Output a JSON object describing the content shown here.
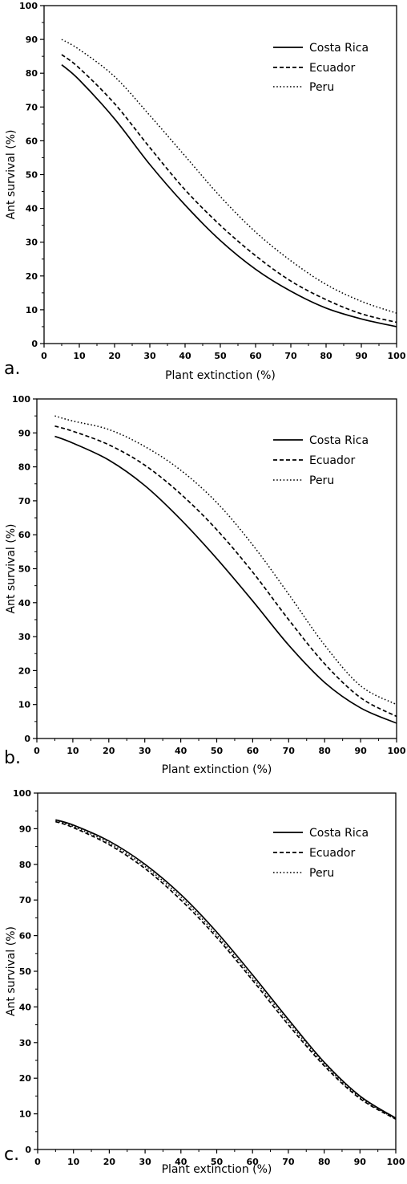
{
  "chart_data": [
    {
      "type": "line",
      "panel_label": "a.",
      "xlabel": "Plant extinction (%)",
      "ylabel": "Ant survival (%)",
      "xlim": [
        0,
        100
      ],
      "ylim": [
        0,
        100
      ],
      "x_ticks": [
        "0",
        "10",
        "20",
        "30",
        "40",
        "50",
        "60",
        "70",
        "80",
        "90",
        "100"
      ],
      "y_ticks": [
        "0",
        "10",
        "20",
        "30",
        "40",
        "50",
        "60",
        "70",
        "80",
        "90",
        "100"
      ],
      "grid": false,
      "legend_position": "top-right",
      "x": [
        5,
        10,
        20,
        30,
        40,
        50,
        60,
        70,
        80,
        90,
        100
      ],
      "series": [
        {
          "name": "Costa Rica",
          "style": "solid",
          "values": [
            82.5,
            78,
            66.5,
            53,
            41,
            30.5,
            22,
            15.5,
            10.5,
            7.3,
            5
          ]
        },
        {
          "name": "Ecuador",
          "style": "dashed",
          "values": [
            85.5,
            81.5,
            71,
            58,
            45.5,
            35,
            26,
            18.5,
            13,
            8.8,
            6.3
          ]
        },
        {
          "name": "Peru",
          "style": "dotted",
          "values": [
            90,
            87,
            79,
            67.5,
            55.5,
            43.5,
            33,
            24.5,
            17.5,
            12.5,
            9
          ]
        }
      ]
    },
    {
      "type": "line",
      "panel_label": "b.",
      "xlabel": "Plant extinction (%)",
      "ylabel": "Ant survival (%)",
      "xlim": [
        0,
        100
      ],
      "ylim": [
        0,
        100
      ],
      "x_ticks": [
        "0",
        "10",
        "20",
        "30",
        "40",
        "50",
        "60",
        "70",
        "80",
        "90",
        "100"
      ],
      "y_ticks": [
        "0",
        "10",
        "20",
        "30",
        "40",
        "50",
        "60",
        "70",
        "80",
        "90",
        "100"
      ],
      "grid": false,
      "legend_position": "top-right",
      "x": [
        5,
        10,
        20,
        30,
        40,
        50,
        60,
        70,
        80,
        90,
        100
      ],
      "series": [
        {
          "name": "Costa Rica",
          "style": "solid",
          "values": [
            89,
            87,
            82,
            74.5,
            64.5,
            53,
            40.5,
            27.5,
            16.5,
            9,
            4.5
          ]
        },
        {
          "name": "Ecuador",
          "style": "dashed",
          "values": [
            92,
            90.5,
            86.5,
            80.5,
            72,
            61.5,
            49,
            35,
            22,
            12,
            6.5
          ]
        },
        {
          "name": "Peru",
          "style": "dotted",
          "values": [
            95,
            93.5,
            91,
            86,
            79,
            69.5,
            57,
            42.5,
            27.5,
            15.5,
            10
          ]
        }
      ]
    },
    {
      "type": "line",
      "panel_label": "c.",
      "xlabel": "Plant extinction (%)",
      "ylabel": "Ant survival (%)",
      "xlim": [
        0,
        100
      ],
      "ylim": [
        0,
        100
      ],
      "x_ticks": [
        "0",
        "10",
        "20",
        "30",
        "40",
        "50",
        "60",
        "70",
        "80",
        "90",
        "100"
      ],
      "y_ticks": [
        "0",
        "10",
        "20",
        "30",
        "40",
        "50",
        "60",
        "70",
        "80",
        "90",
        "100"
      ],
      "grid": false,
      "legend_position": "top-right",
      "x": [
        5,
        10,
        20,
        30,
        40,
        50,
        60,
        70,
        80,
        90,
        100
      ],
      "series": [
        {
          "name": "Costa Rica",
          "style": "solid",
          "values": [
            92.5,
            91,
            86.5,
            80,
            71.5,
            61,
            49,
            36.5,
            24.5,
            15,
            8.8
          ]
        },
        {
          "name": "Ecuador",
          "style": "dashed",
          "values": [
            92,
            90.3,
            85.5,
            78.8,
            70,
            59.5,
            47.5,
            35,
            23.5,
            14.3,
            8.5
          ]
        },
        {
          "name": "Peru",
          "style": "dotted",
          "values": [
            92.2,
            90.6,
            86,
            79.4,
            70.8,
            60.2,
            48.2,
            35.8,
            24,
            14.6,
            8.6
          ]
        }
      ]
    }
  ]
}
